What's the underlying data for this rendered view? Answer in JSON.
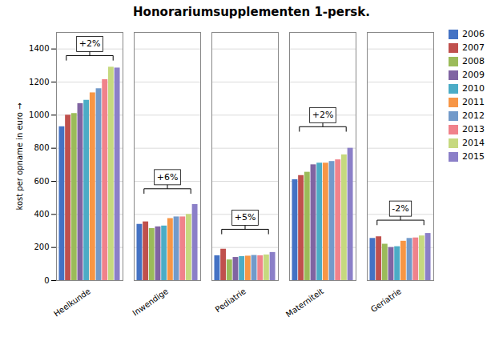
{
  "chart_data": {
    "type": "bar",
    "title": "Honorariumsupplementen 1-persk.",
    "ylabel": "kost per opname in euro",
    "categories": [
      "Heelkunde",
      "Inwendige",
      "Pediatrie",
      "Materniteit",
      "Geriatrie"
    ],
    "series": [
      {
        "name": "2006",
        "color": "#4472C4",
        "values": [
          930,
          340,
          150,
          610,
          255
        ]
      },
      {
        "name": "2007",
        "color": "#C0504D",
        "values": [
          1000,
          355,
          190,
          635,
          265
        ]
      },
      {
        "name": "2008",
        "color": "#9BBB59",
        "values": [
          1010,
          315,
          125,
          655,
          220
        ]
      },
      {
        "name": "2009",
        "color": "#8064A2",
        "values": [
          1070,
          325,
          140,
          700,
          200
        ]
      },
      {
        "name": "2010",
        "color": "#4BACC6",
        "values": [
          1090,
          330,
          145,
          710,
          205
        ]
      },
      {
        "name": "2011",
        "color": "#F79646",
        "values": [
          1135,
          375,
          148,
          710,
          238
        ]
      },
      {
        "name": "2012",
        "color": "#729ACA",
        "values": [
          1160,
          385,
          152,
          720,
          255
        ]
      },
      {
        "name": "2013",
        "color": "#F0828B",
        "values": [
          1215,
          385,
          150,
          730,
          258
        ]
      },
      {
        "name": "2014",
        "color": "#C6D97F",
        "values": [
          1290,
          400,
          155,
          760,
          270
        ]
      },
      {
        "name": "2015",
        "color": "#8B7FC8",
        "values": [
          1285,
          460,
          170,
          800,
          285
        ]
      }
    ],
    "ylim": [
      0,
      1500
    ],
    "yticks": [
      0,
      200,
      400,
      600,
      800,
      1000,
      1200,
      1400
    ],
    "grid": true,
    "legend": "right",
    "annotations": [
      {
        "category": "Heelkunde",
        "text": "+2%",
        "y": 1430,
        "bracket_y": 1360
      },
      {
        "category": "Inwendige",
        "text": "+6%",
        "y": 625,
        "bracket_y": 555
      },
      {
        "category": "Pediatrie",
        "text": "+5%",
        "y": 380,
        "bracket_y": 310
      },
      {
        "category": "Materniteit",
        "text": "+2%",
        "y": 1000,
        "bracket_y": 930
      },
      {
        "category": "Geriatrie",
        "text": "-2%",
        "y": 435,
        "bracket_y": 365
      }
    ]
  }
}
